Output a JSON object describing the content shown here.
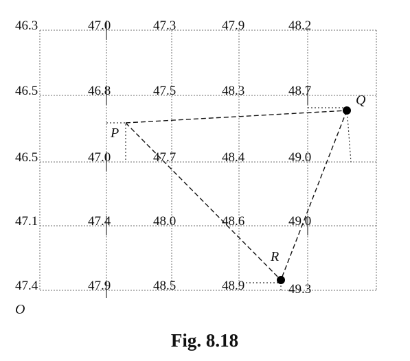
{
  "grid_values": [
    [
      "46.3",
      "47.0",
      "47.3",
      "47.9",
      "48.2"
    ],
    [
      "46.5",
      "46.8",
      "47.5",
      "48.3",
      "48.7"
    ],
    [
      "46.5",
      "47.0",
      "47.7",
      "48.4",
      "49.0"
    ],
    [
      "47.1",
      "47.4",
      "48.0",
      "48.6",
      "49.0"
    ],
    [
      "47.4",
      "47.9",
      "48.5",
      "48.9",
      "49.3"
    ]
  ],
  "points": {
    "P": "P",
    "Q": "Q",
    "R": "R",
    "origin": "O"
  },
  "caption": "Fig. 8.18"
}
